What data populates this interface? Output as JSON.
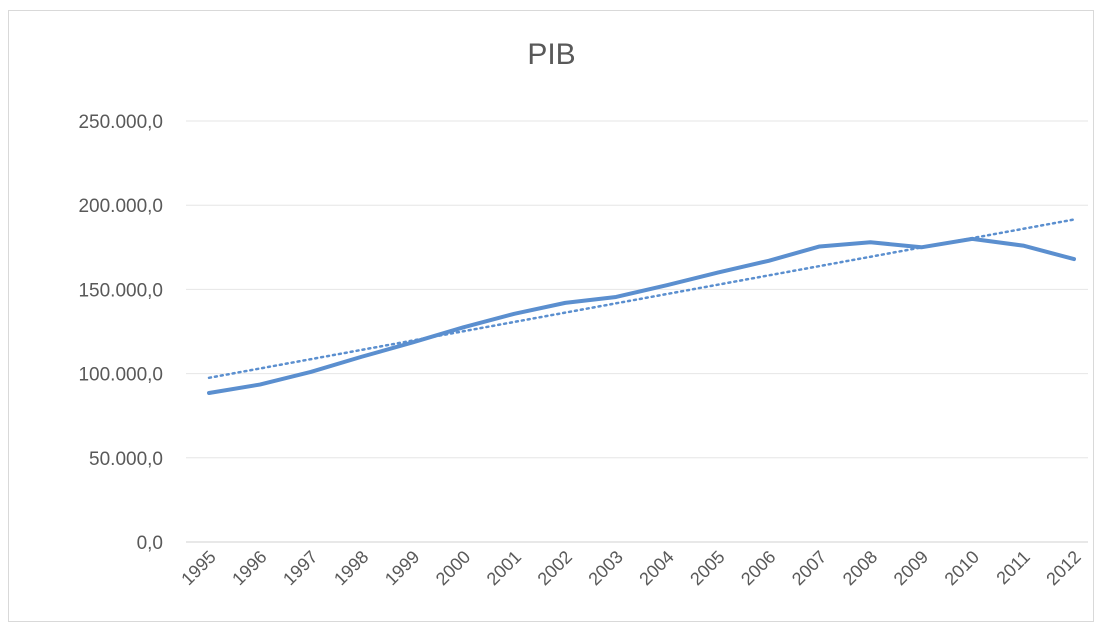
{
  "chart_data": {
    "type": "line",
    "title": "PIB",
    "xlabel": "",
    "ylabel": "",
    "categories": [
      "1995",
      "1996",
      "1997",
      "1998",
      "1999",
      "2000",
      "2001",
      "2002",
      "2003",
      "2004",
      "2005",
      "2006",
      "2007",
      "2008",
      "2009",
      "2010",
      "2011",
      "2012"
    ],
    "y_ticks": [
      "0,0",
      "50.000,0",
      "100.000,0",
      "150.000,0",
      "200.000,0",
      "250.000,0"
    ],
    "ylim": [
      0,
      250000
    ],
    "series": [
      {
        "name": "",
        "values": [
          88500,
          93500,
          101000,
          110000,
          118500,
          127500,
          135500,
          142000,
          145500,
          152500,
          160000,
          167000,
          175500,
          178000,
          175000,
          180000,
          176000,
          168000
        ],
        "color": "#5b8fcf"
      }
    ],
    "trendline": {
      "type": "linear",
      "start": 97500,
      "end": 191500,
      "color": "#5b8fcf",
      "style": "dotted"
    },
    "grid": true,
    "legend": "none"
  }
}
